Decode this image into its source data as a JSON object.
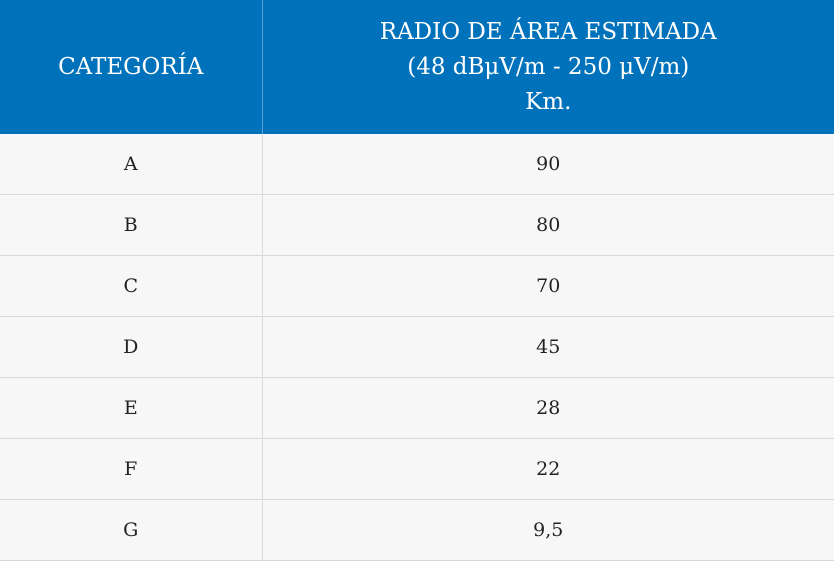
{
  "table": {
    "header": {
      "category": "CATEGORÍA",
      "radius_lines": [
        "RADIO DE ÁREA ESTIMADA",
        "(48 dBμV/m - 250 μV/m)",
        "Km."
      ]
    },
    "rows": [
      {
        "category": "A",
        "radius": "90"
      },
      {
        "category": "B",
        "radius": "80"
      },
      {
        "category": "C",
        "radius": "70"
      },
      {
        "category": "D",
        "radius": "45"
      },
      {
        "category": "E",
        "radius": "28"
      },
      {
        "category": "F",
        "radius": "22"
      },
      {
        "category": "G",
        "radius": "9,5"
      }
    ]
  },
  "colors": {
    "header_bg": "#0071bb",
    "header_text": "#ffffff",
    "row_bg": "#f7f7f7",
    "border": "#d9d9d9",
    "cell_text": "#222222"
  }
}
